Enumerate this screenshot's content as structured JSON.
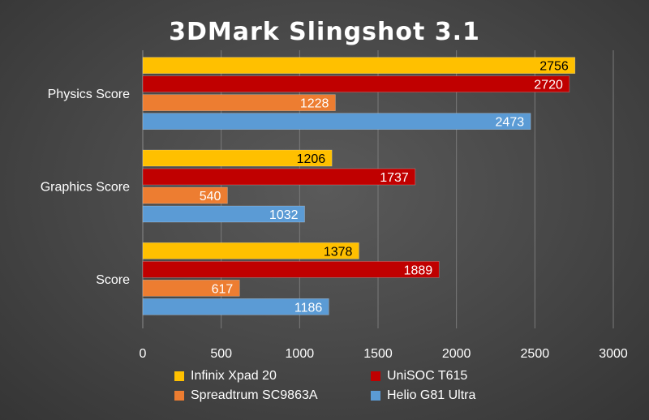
{
  "chart_data": {
    "type": "bar",
    "orientation": "horizontal",
    "title": "3DMark Slingshot 3.1",
    "categories": [
      "Physics Score",
      "Graphics Score",
      "Score"
    ],
    "series": [
      {
        "name": "Infinix Xpad 20",
        "color": "#ffc000",
        "label_color": "#000000",
        "values": [
          2756,
          1206,
          1378
        ]
      },
      {
        "name": "UniSOC T615",
        "color": "#c00000",
        "label_color": "#ffffff",
        "values": [
          2720,
          1737,
          1889
        ]
      },
      {
        "name": "Spreadtrum SC9863A",
        "color": "#ed7d31",
        "label_color": "#ffffff",
        "values": [
          1228,
          540,
          617
        ]
      },
      {
        "name": "Helio G81 Ultra",
        "color": "#5b9bd5",
        "label_color": "#ffffff",
        "values": [
          2473,
          1032,
          1186
        ]
      }
    ],
    "xlim": [
      0,
      3000
    ],
    "xticks": [
      "0",
      "500",
      "1000",
      "1500",
      "2000",
      "2500",
      "3000"
    ],
    "xlabel": "",
    "ylabel": "",
    "grid": true,
    "legend_position": "bottom"
  }
}
